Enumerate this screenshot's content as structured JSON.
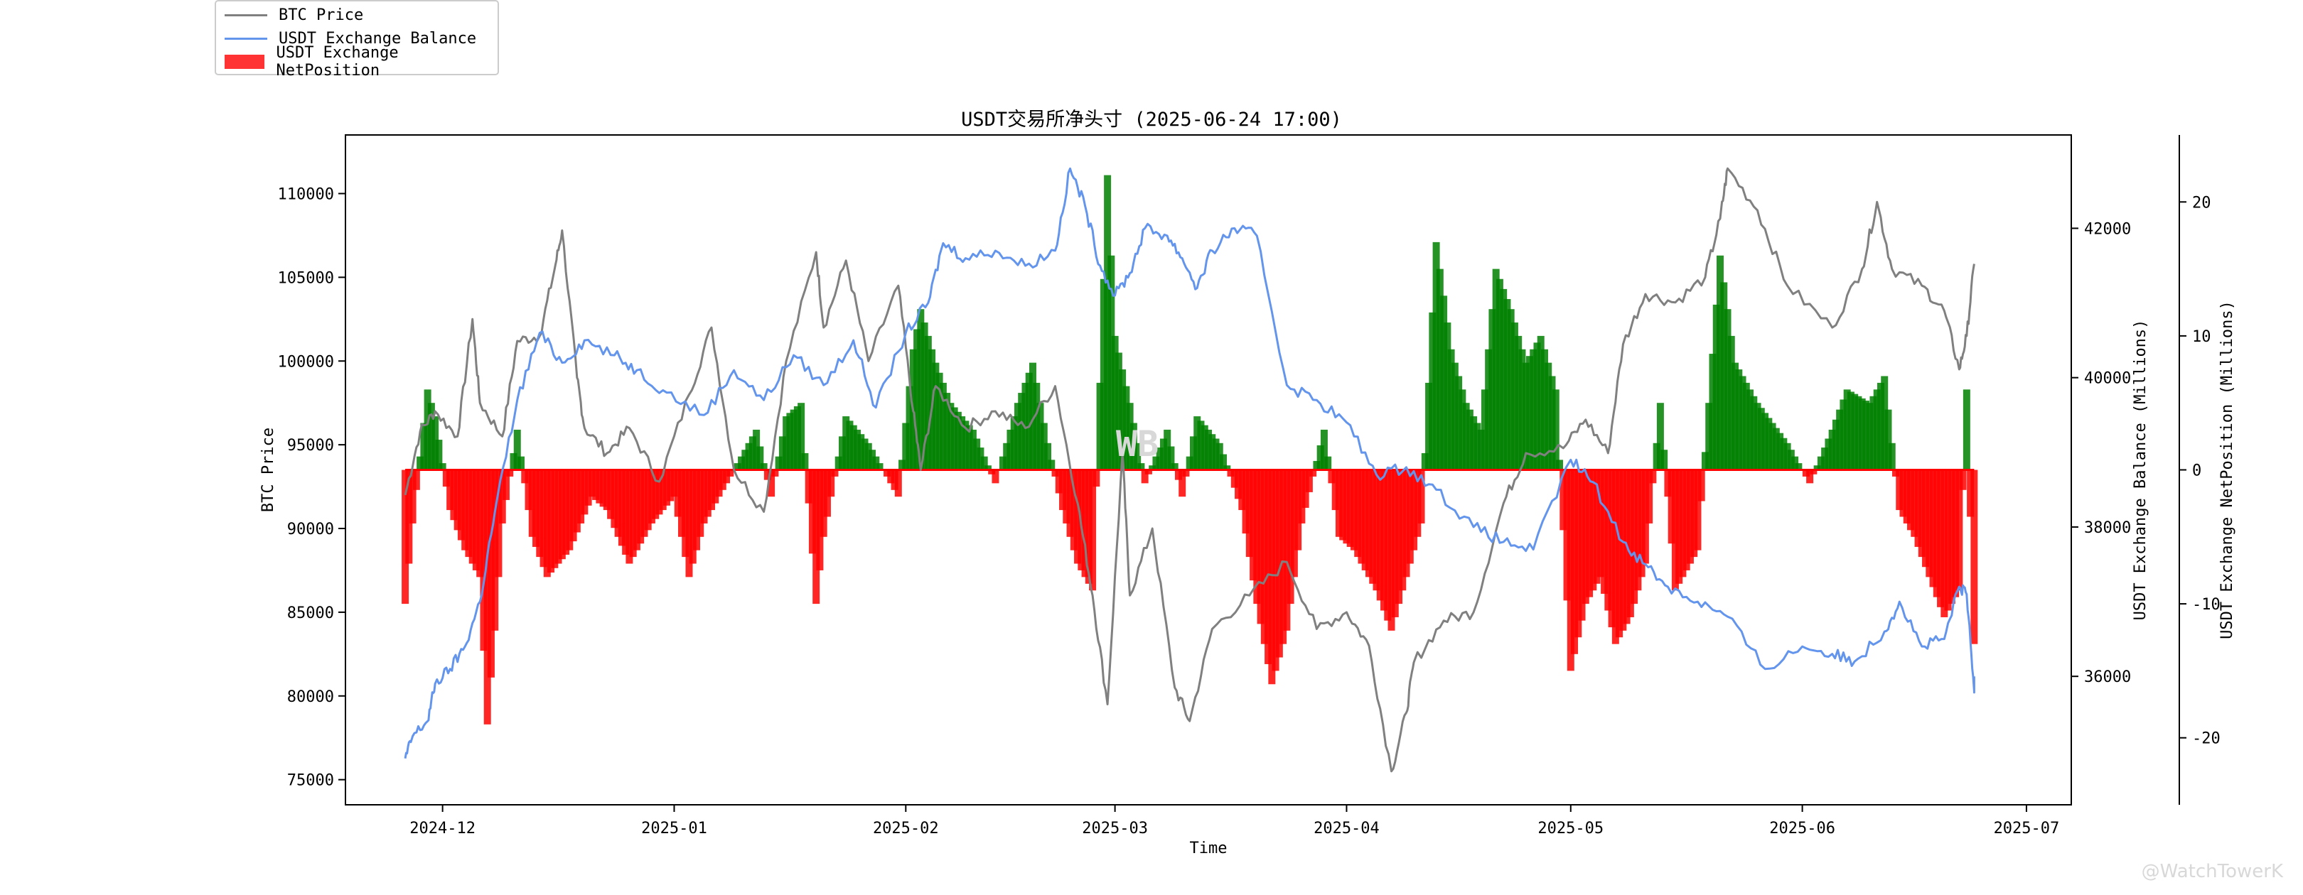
{
  "legend": {
    "items": [
      {
        "label": "BTC Price",
        "color": "#808080",
        "kind": "line"
      },
      {
        "label": "USDT Exchange Balance",
        "color": "#6495ED",
        "kind": "line"
      },
      {
        "label": "USDT Exchange NetPosition",
        "color": "#FF0000",
        "kind": "bar"
      }
    ]
  },
  "watermark": "WB",
  "corner_mark": "@WatchTowerK",
  "chart_data": {
    "type": "line",
    "title": "USDT交易所净头寸 (2025-06-24 17:00)",
    "xlabel": "Time",
    "x_ticks": [
      "2024-12",
      "2025-01",
      "2025-02",
      "2025-03",
      "2025-04",
      "2025-05",
      "2025-06",
      "2025-07"
    ],
    "x_range": [
      "2024-11-18",
      "2025-07-07"
    ],
    "axes": [
      {
        "id": "left",
        "label": "BTC Price",
        "ylim": [
          73500,
          113500
        ],
        "ticks": [
          75000,
          80000,
          85000,
          90000,
          95000,
          100000,
          105000,
          110000
        ]
      },
      {
        "id": "right1",
        "label": "USDT Exchange Balance (Millions)",
        "ylim": [
          34280,
          43250
        ],
        "ticks": [
          36000,
          38000,
          40000,
          42000
        ]
      },
      {
        "id": "right2",
        "label": "USDT Exchange NetPosition (Millions)",
        "ylim": [
          -25,
          25
        ],
        "ticks": [
          -20,
          -10,
          0,
          10,
          20
        ]
      }
    ],
    "positive_color": "#008000",
    "negative_color": "#FF0000",
    "series": [
      {
        "name": "BTC Price",
        "axis": "left",
        "color": "#808080",
        "points": [
          [
            "2024-11-26",
            92000
          ],
          [
            "2024-11-28",
            95800
          ],
          [
            "2024-11-30",
            97000
          ],
          [
            "2024-12-03",
            95500
          ],
          [
            "2024-12-05",
            102500
          ],
          [
            "2024-12-06",
            97500
          ],
          [
            "2024-12-09",
            95500
          ],
          [
            "2024-12-11",
            101200
          ],
          [
            "2024-12-14",
            101500
          ],
          [
            "2024-12-16",
            105500
          ],
          [
            "2024-12-17",
            107800
          ],
          [
            "2024-12-19",
            99000
          ],
          [
            "2024-12-20",
            96000
          ],
          [
            "2024-12-23",
            94500
          ],
          [
            "2024-12-26",
            96000
          ],
          [
            "2024-12-30",
            92800
          ],
          [
            "2025-01-03",
            98000
          ],
          [
            "2025-01-06",
            102000
          ],
          [
            "2025-01-09",
            93500
          ],
          [
            "2025-01-13",
            91000
          ],
          [
            "2025-01-16",
            100000
          ],
          [
            "2025-01-20",
            106500
          ],
          [
            "2025-01-21",
            102000
          ],
          [
            "2025-01-24",
            106000
          ],
          [
            "2025-01-27",
            100000
          ],
          [
            "2025-01-31",
            104500
          ],
          [
            "2025-02-02",
            97000
          ],
          [
            "2025-02-03",
            93500
          ],
          [
            "2025-02-05",
            98500
          ],
          [
            "2025-02-09",
            96000
          ],
          [
            "2025-02-13",
            97000
          ],
          [
            "2025-02-17",
            96000
          ],
          [
            "2025-02-21",
            98500
          ],
          [
            "2025-02-24",
            91500
          ],
          [
            "2025-02-26",
            86000
          ],
          [
            "2025-02-28",
            79500
          ],
          [
            "2025-03-02",
            94500
          ],
          [
            "2025-03-03",
            86000
          ],
          [
            "2025-03-06",
            90000
          ],
          [
            "2025-03-09",
            80500
          ],
          [
            "2025-03-11",
            78500
          ],
          [
            "2025-03-14",
            84000
          ],
          [
            "2025-03-19",
            86000
          ],
          [
            "2025-03-24",
            88000
          ],
          [
            "2025-03-28",
            84000
          ],
          [
            "2025-04-01",
            85000
          ],
          [
            "2025-04-04",
            83000
          ],
          [
            "2025-04-07",
            75500
          ],
          [
            "2025-04-09",
            79000
          ],
          [
            "2025-04-10",
            82000
          ],
          [
            "2025-04-14",
            84500
          ],
          [
            "2025-04-18",
            85000
          ],
          [
            "2025-04-22",
            91500
          ],
          [
            "2025-04-25",
            94500
          ],
          [
            "2025-04-30",
            94800
          ],
          [
            "2025-05-03",
            96500
          ],
          [
            "2025-05-06",
            94500
          ],
          [
            "2025-05-08",
            101000
          ],
          [
            "2025-05-11",
            104000
          ],
          [
            "2025-05-15",
            103500
          ],
          [
            "2025-05-19",
            105000
          ],
          [
            "2025-05-21",
            108500
          ],
          [
            "2025-05-22",
            111500
          ],
          [
            "2025-05-26",
            109000
          ],
          [
            "2025-05-30",
            104500
          ],
          [
            "2025-06-05",
            102000
          ],
          [
            "2025-06-09",
            105500
          ],
          [
            "2025-06-11",
            109500
          ],
          [
            "2025-06-13",
            105500
          ],
          [
            "2025-06-17",
            104500
          ],
          [
            "2025-06-20",
            103000
          ],
          [
            "2025-06-22",
            99500
          ],
          [
            "2025-06-23",
            101500
          ],
          [
            "2025-06-24",
            105800
          ]
        ]
      },
      {
        "name": "USDT Exchange Balance",
        "axis": "right1",
        "color": "#6495ED",
        "points": [
          [
            "2024-11-26",
            34900
          ],
          [
            "2024-11-27",
            35200
          ],
          [
            "2024-11-29",
            35400
          ],
          [
            "2024-11-30",
            35900
          ],
          [
            "2024-12-02",
            36100
          ],
          [
            "2024-12-04",
            36400
          ],
          [
            "2024-12-06",
            37000
          ],
          [
            "2024-12-08",
            38200
          ],
          [
            "2024-12-11",
            39700
          ],
          [
            "2024-12-14",
            40600
          ],
          [
            "2024-12-17",
            40200
          ],
          [
            "2024-12-20",
            40500
          ],
          [
            "2024-12-24",
            40300
          ],
          [
            "2024-12-27",
            40100
          ],
          [
            "2024-12-31",
            39800
          ],
          [
            "2025-01-05",
            39500
          ],
          [
            "2025-01-09",
            40100
          ],
          [
            "2025-01-13",
            39700
          ],
          [
            "2025-01-17",
            40300
          ],
          [
            "2025-01-21",
            39900
          ],
          [
            "2025-01-25",
            40500
          ],
          [
            "2025-01-28",
            39600
          ],
          [
            "2025-02-01",
            40600
          ],
          [
            "2025-02-04",
            41000
          ],
          [
            "2025-02-06",
            41800
          ],
          [
            "2025-02-09",
            41600
          ],
          [
            "2025-02-13",
            41700
          ],
          [
            "2025-02-17",
            41500
          ],
          [
            "2025-02-21",
            41700
          ],
          [
            "2025-02-23",
            42800
          ],
          [
            "2025-02-25",
            42300
          ],
          [
            "2025-02-27",
            41500
          ],
          [
            "2025-03-01",
            41100
          ],
          [
            "2025-03-03",
            41400
          ],
          [
            "2025-03-05",
            42000
          ],
          [
            "2025-03-08",
            41900
          ],
          [
            "2025-03-10",
            41600
          ],
          [
            "2025-03-12",
            41200
          ],
          [
            "2025-03-14",
            41700
          ],
          [
            "2025-03-17",
            42000
          ],
          [
            "2025-03-20",
            41900
          ],
          [
            "2025-03-24",
            39900
          ],
          [
            "2025-03-28",
            39700
          ],
          [
            "2025-04-01",
            39400
          ],
          [
            "2025-04-05",
            38700
          ],
          [
            "2025-04-09",
            38800
          ],
          [
            "2025-04-13",
            38500
          ],
          [
            "2025-04-18",
            38000
          ],
          [
            "2025-04-22",
            37800
          ],
          [
            "2025-04-26",
            37700
          ],
          [
            "2025-05-01",
            38900
          ],
          [
            "2025-05-04",
            38600
          ],
          [
            "2025-05-08",
            37800
          ],
          [
            "2025-05-11",
            37500
          ],
          [
            "2025-05-14",
            37200
          ],
          [
            "2025-05-18",
            37000
          ],
          [
            "2025-05-22",
            36800
          ],
          [
            "2025-05-27",
            36100
          ],
          [
            "2025-06-01",
            36400
          ],
          [
            "2025-06-05",
            36300
          ],
          [
            "2025-06-08",
            36200
          ],
          [
            "2025-06-12",
            36600
          ],
          [
            "2025-06-14",
            37000
          ],
          [
            "2025-06-17",
            36400
          ],
          [
            "2025-06-20",
            36500
          ],
          [
            "2025-06-22",
            37200
          ],
          [
            "2025-06-23",
            37100
          ],
          [
            "2025-06-24",
            35800
          ],
          [
            "2025-06-24",
            36000
          ]
        ]
      },
      {
        "name": "USDT Exchange NetPosition",
        "axis": "right2",
        "type": "bar",
        "points": [
          [
            "2024-11-26",
            -10
          ],
          [
            "2024-11-27",
            -4
          ],
          [
            "2024-11-29",
            6
          ],
          [
            "2024-11-30",
            4
          ],
          [
            "2024-12-02",
            -3
          ],
          [
            "2024-12-04",
            -6
          ],
          [
            "2024-12-06",
            -8
          ],
          [
            "2024-12-07",
            -19
          ],
          [
            "2024-12-08",
            -12
          ],
          [
            "2024-12-09",
            -4
          ],
          [
            "2024-12-11",
            3
          ],
          [
            "2024-12-13",
            -5
          ],
          [
            "2024-12-15",
            -8
          ],
          [
            "2024-12-18",
            -6
          ],
          [
            "2024-12-21",
            -2
          ],
          [
            "2024-12-23",
            -3
          ],
          [
            "2024-12-26",
            -7
          ],
          [
            "2024-12-29",
            -4
          ],
          [
            "2025-01-01",
            -2
          ],
          [
            "2025-01-03",
            -8
          ],
          [
            "2025-01-05",
            -4
          ],
          [
            "2025-01-08",
            -1
          ],
          [
            "2025-01-10",
            1
          ],
          [
            "2025-01-12",
            3
          ],
          [
            "2025-01-14",
            -2
          ],
          [
            "2025-01-16",
            4
          ],
          [
            "2025-01-18",
            5
          ],
          [
            "2025-01-20",
            -10
          ],
          [
            "2025-01-21",
            -5
          ],
          [
            "2025-01-24",
            4
          ],
          [
            "2025-01-27",
            2
          ],
          [
            "2025-01-31",
            -2
          ],
          [
            "2025-02-02",
            9
          ],
          [
            "2025-02-03",
            12
          ],
          [
            "2025-02-05",
            8
          ],
          [
            "2025-02-07",
            5
          ],
          [
            "2025-02-10",
            3
          ],
          [
            "2025-02-13",
            -1
          ],
          [
            "2025-02-16",
            5
          ],
          [
            "2025-02-18",
            8
          ],
          [
            "2025-02-20",
            2
          ],
          [
            "2025-02-22",
            -3
          ],
          [
            "2025-02-24",
            -7
          ],
          [
            "2025-02-26",
            -9
          ],
          [
            "2025-02-28",
            22
          ],
          [
            "2025-03-01",
            10
          ],
          [
            "2025-03-03",
            5
          ],
          [
            "2025-03-05",
            -1
          ],
          [
            "2025-03-08",
            3
          ],
          [
            "2025-03-10",
            -2
          ],
          [
            "2025-03-12",
            4
          ],
          [
            "2025-03-15",
            2
          ],
          [
            "2025-03-18",
            -3
          ],
          [
            "2025-03-20",
            -10
          ],
          [
            "2025-03-22",
            -16
          ],
          [
            "2025-03-24",
            -12
          ],
          [
            "2025-03-26",
            -4
          ],
          [
            "2025-03-29",
            3
          ],
          [
            "2025-03-31",
            -5
          ],
          [
            "2025-04-02",
            -6
          ],
          [
            "2025-04-05",
            -9
          ],
          [
            "2025-04-07",
            -12
          ],
          [
            "2025-04-09",
            -8
          ],
          [
            "2025-04-11",
            -4
          ],
          [
            "2025-04-13",
            17
          ],
          [
            "2025-04-15",
            9
          ],
          [
            "2025-04-17",
            5
          ],
          [
            "2025-04-19",
            3
          ],
          [
            "2025-04-21",
            15
          ],
          [
            "2025-04-23",
            12
          ],
          [
            "2025-04-25",
            8
          ],
          [
            "2025-04-27",
            10
          ],
          [
            "2025-04-29",
            6
          ],
          [
            "2025-05-01",
            -15
          ],
          [
            "2025-05-03",
            -10
          ],
          [
            "2025-05-05",
            -8
          ],
          [
            "2025-05-07",
            -13
          ],
          [
            "2025-05-09",
            -11
          ],
          [
            "2025-05-11",
            -7
          ],
          [
            "2025-05-13",
            5
          ],
          [
            "2025-05-15",
            -9
          ],
          [
            "2025-05-18",
            -6
          ],
          [
            "2025-05-21",
            16
          ],
          [
            "2025-05-23",
            8
          ],
          [
            "2025-05-26",
            5
          ],
          [
            "2025-05-30",
            2
          ],
          [
            "2025-06-02",
            -1
          ],
          [
            "2025-06-05",
            3
          ],
          [
            "2025-06-07",
            6
          ],
          [
            "2025-06-10",
            5
          ],
          [
            "2025-06-12",
            7
          ],
          [
            "2025-06-14",
            -3
          ],
          [
            "2025-06-16",
            -5
          ],
          [
            "2025-06-18",
            -8
          ],
          [
            "2025-06-20",
            -11
          ],
          [
            "2025-06-22",
            -9
          ],
          [
            "2025-06-23",
            6
          ],
          [
            "2025-06-24",
            -13
          ]
        ]
      }
    ]
  }
}
